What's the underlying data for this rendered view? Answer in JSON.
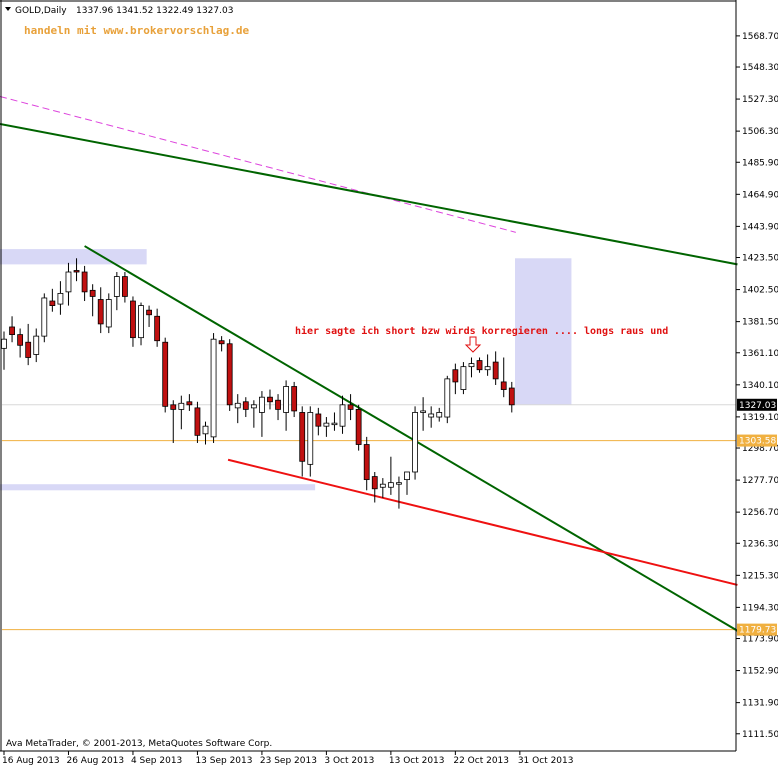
{
  "header": {
    "symbol": "GOLD,Daily",
    "ohlc": "1337.96 1341.52 1322.49 1327.03",
    "brand": "handeln mit www.brokervorschlag.de"
  },
  "footer": {
    "copyright": "Ava MetaTrader, © 2001-2013, MetaQuotes Software Corp."
  },
  "annotation": {
    "text": "hier sagte ich short bzw wirds korregieren .... longs raus und"
  },
  "colors": {
    "bull_body": "#ffffff",
    "bear_body": "#c01010",
    "wick": "#000000",
    "trend_green": "#006400",
    "trend_red": "#ee1111",
    "magenta": "#dd44dd",
    "zone": "#d8d8f6",
    "support": "#f0b040",
    "grid": "#d8d8d8"
  },
  "chart_data": {
    "type": "candlestick",
    "y_ticks": [
      "1568.70",
      "1548.30",
      "1527.30",
      "1506.30",
      "1485.90",
      "1464.90",
      "1443.90",
      "1423.50",
      "1402.50",
      "1381.50",
      "1361.10",
      "1340.10",
      "1319.10",
      "1298.70",
      "1277.70",
      "1256.70",
      "1236.30",
      "1215.30",
      "1194.30",
      "1173.90",
      "1152.90",
      "1131.90",
      "1111.50"
    ],
    "x_ticks": [
      "16 Aug 2013",
      "26 Aug 2013",
      "4 Sep 2013",
      "13 Sep 2013",
      "23 Sep 2013",
      "3 Oct 2013",
      "13 Oct 2013",
      "22 Oct 2013",
      "31 Oct 2013"
    ],
    "ylim": [
      1104.8,
      1579.1
    ],
    "current_price": "1327.03",
    "levels": [
      {
        "label": "1303.58",
        "value": 1303.58
      },
      {
        "label": "1179.73",
        "value": 1179.73
      }
    ],
    "candles": [
      {
        "i": 0,
        "o": 1364,
        "h": 1375,
        "l": 1350,
        "c": 1370
      },
      {
        "i": 1,
        "o": 1378,
        "h": 1385,
        "l": 1368,
        "c": 1373
      },
      {
        "i": 2,
        "o": 1373,
        "h": 1377,
        "l": 1358,
        "c": 1366
      },
      {
        "i": 3,
        "o": 1368,
        "h": 1380,
        "l": 1353,
        "c": 1358
      },
      {
        "i": 4,
        "o": 1360,
        "h": 1377,
        "l": 1355,
        "c": 1372
      },
      {
        "i": 5,
        "o": 1372,
        "h": 1400,
        "l": 1368,
        "c": 1397
      },
      {
        "i": 6,
        "o": 1395,
        "h": 1403,
        "l": 1388,
        "c": 1392
      },
      {
        "i": 7,
        "o": 1393,
        "h": 1408,
        "l": 1386,
        "c": 1400
      },
      {
        "i": 8,
        "o": 1401,
        "h": 1420,
        "l": 1392,
        "c": 1414
      },
      {
        "i": 9,
        "o": 1415,
        "h": 1423,
        "l": 1408,
        "c": 1414
      },
      {
        "i": 10,
        "o": 1414,
        "h": 1418,
        "l": 1395,
        "c": 1401
      },
      {
        "i": 11,
        "o": 1402,
        "h": 1406,
        "l": 1385,
        "c": 1398
      },
      {
        "i": 12,
        "o": 1396,
        "h": 1404,
        "l": 1374,
        "c": 1380
      },
      {
        "i": 13,
        "o": 1378,
        "h": 1400,
        "l": 1374,
        "c": 1396
      },
      {
        "i": 14,
        "o": 1398,
        "h": 1414,
        "l": 1389,
        "c": 1411
      },
      {
        "i": 15,
        "o": 1411,
        "h": 1414,
        "l": 1394,
        "c": 1398
      },
      {
        "i": 16,
        "o": 1395,
        "h": 1398,
        "l": 1365,
        "c": 1371
      },
      {
        "i": 17,
        "o": 1371,
        "h": 1394,
        "l": 1366,
        "c": 1392
      },
      {
        "i": 18,
        "o": 1389,
        "h": 1392,
        "l": 1378,
        "c": 1386
      },
      {
        "i": 19,
        "o": 1385,
        "h": 1390,
        "l": 1365,
        "c": 1369
      },
      {
        "i": 20,
        "o": 1368,
        "h": 1371,
        "l": 1322,
        "c": 1326
      },
      {
        "i": 21,
        "o": 1327,
        "h": 1330,
        "l": 1302,
        "c": 1324
      },
      {
        "i": 22,
        "o": 1324,
        "h": 1333,
        "l": 1311,
        "c": 1328
      },
      {
        "i": 23,
        "o": 1329,
        "h": 1334,
        "l": 1323,
        "c": 1327
      },
      {
        "i": 24,
        "o": 1325,
        "h": 1329,
        "l": 1302,
        "c": 1307
      },
      {
        "i": 25,
        "o": 1308,
        "h": 1316,
        "l": 1301,
        "c": 1313
      },
      {
        "i": 26,
        "o": 1306,
        "h": 1374,
        "l": 1302,
        "c": 1370
      },
      {
        "i": 27,
        "o": 1369,
        "h": 1372,
        "l": 1362,
        "c": 1367
      },
      {
        "i": 28,
        "o": 1367,
        "h": 1370,
        "l": 1323,
        "c": 1327
      },
      {
        "i": 29,
        "o": 1325,
        "h": 1334,
        "l": 1315,
        "c": 1328
      },
      {
        "i": 30,
        "o": 1329,
        "h": 1332,
        "l": 1319,
        "c": 1324
      },
      {
        "i": 31,
        "o": 1325,
        "h": 1330,
        "l": 1312,
        "c": 1327
      },
      {
        "i": 32,
        "o": 1322,
        "h": 1336,
        "l": 1306,
        "c": 1332
      },
      {
        "i": 33,
        "o": 1332,
        "h": 1337,
        "l": 1324,
        "c": 1329
      },
      {
        "i": 34,
        "o": 1330,
        "h": 1334,
        "l": 1317,
        "c": 1324
      },
      {
        "i": 35,
        "o": 1322,
        "h": 1343,
        "l": 1310,
        "c": 1339
      },
      {
        "i": 36,
        "o": 1339,
        "h": 1342,
        "l": 1319,
        "c": 1323
      },
      {
        "i": 37,
        "o": 1322,
        "h": 1326,
        "l": 1280,
        "c": 1290
      },
      {
        "i": 38,
        "o": 1288,
        "h": 1326,
        "l": 1280,
        "c": 1322
      },
      {
        "i": 39,
        "o": 1321,
        "h": 1325,
        "l": 1307,
        "c": 1313
      },
      {
        "i": 40,
        "o": 1313,
        "h": 1319,
        "l": 1306,
        "c": 1315
      },
      {
        "i": 41,
        "o": 1314,
        "h": 1322,
        "l": 1310,
        "c": 1315
      },
      {
        "i": 42,
        "o": 1313,
        "h": 1333,
        "l": 1308,
        "c": 1327
      },
      {
        "i": 43,
        "o": 1327,
        "h": 1334,
        "l": 1317,
        "c": 1324
      },
      {
        "i": 44,
        "o": 1324,
        "h": 1327,
        "l": 1297,
        "c": 1301
      },
      {
        "i": 45,
        "o": 1301,
        "h": 1306,
        "l": 1271,
        "c": 1278
      },
      {
        "i": 46,
        "o": 1280,
        "h": 1283,
        "l": 1263,
        "c": 1272
      },
      {
        "i": 47,
        "o": 1273,
        "h": 1279,
        "l": 1266,
        "c": 1275
      },
      {
        "i": 48,
        "o": 1273,
        "h": 1293,
        "l": 1268,
        "c": 1276
      },
      {
        "i": 49,
        "o": 1275,
        "h": 1280,
        "l": 1259,
        "c": 1276
      },
      {
        "i": 50,
        "o": 1278,
        "h": 1283,
        "l": 1268,
        "c": 1283
      },
      {
        "i": 51,
        "o": 1283,
        "h": 1326,
        "l": 1278,
        "c": 1322
      },
      {
        "i": 52,
        "o": 1322,
        "h": 1332,
        "l": 1310,
        "c": 1323
      },
      {
        "i": 53,
        "o": 1319,
        "h": 1326,
        "l": 1312,
        "c": 1321
      },
      {
        "i": 54,
        "o": 1319,
        "h": 1325,
        "l": 1316,
        "c": 1322
      },
      {
        "i": 55,
        "o": 1319,
        "h": 1346,
        "l": 1315,
        "c": 1344
      },
      {
        "i": 56,
        "o": 1350,
        "h": 1354,
        "l": 1334,
        "c": 1342
      },
      {
        "i": 57,
        "o": 1337,
        "h": 1355,
        "l": 1334,
        "c": 1352
      },
      {
        "i": 58,
        "o": 1352,
        "h": 1358,
        "l": 1345,
        "c": 1354
      },
      {
        "i": 59,
        "o": 1356,
        "h": 1358,
        "l": 1348,
        "c": 1350
      },
      {
        "i": 60,
        "o": 1350,
        "h": 1360,
        "l": 1346,
        "c": 1352
      },
      {
        "i": 61,
        "o": 1355,
        "h": 1362,
        "l": 1340,
        "c": 1344
      },
      {
        "i": 62,
        "o": 1342,
        "h": 1358,
        "l": 1332,
        "c": 1337
      },
      {
        "i": 63,
        "o": 1338,
        "h": 1342,
        "l": 1322,
        "c": 1327
      }
    ]
  }
}
